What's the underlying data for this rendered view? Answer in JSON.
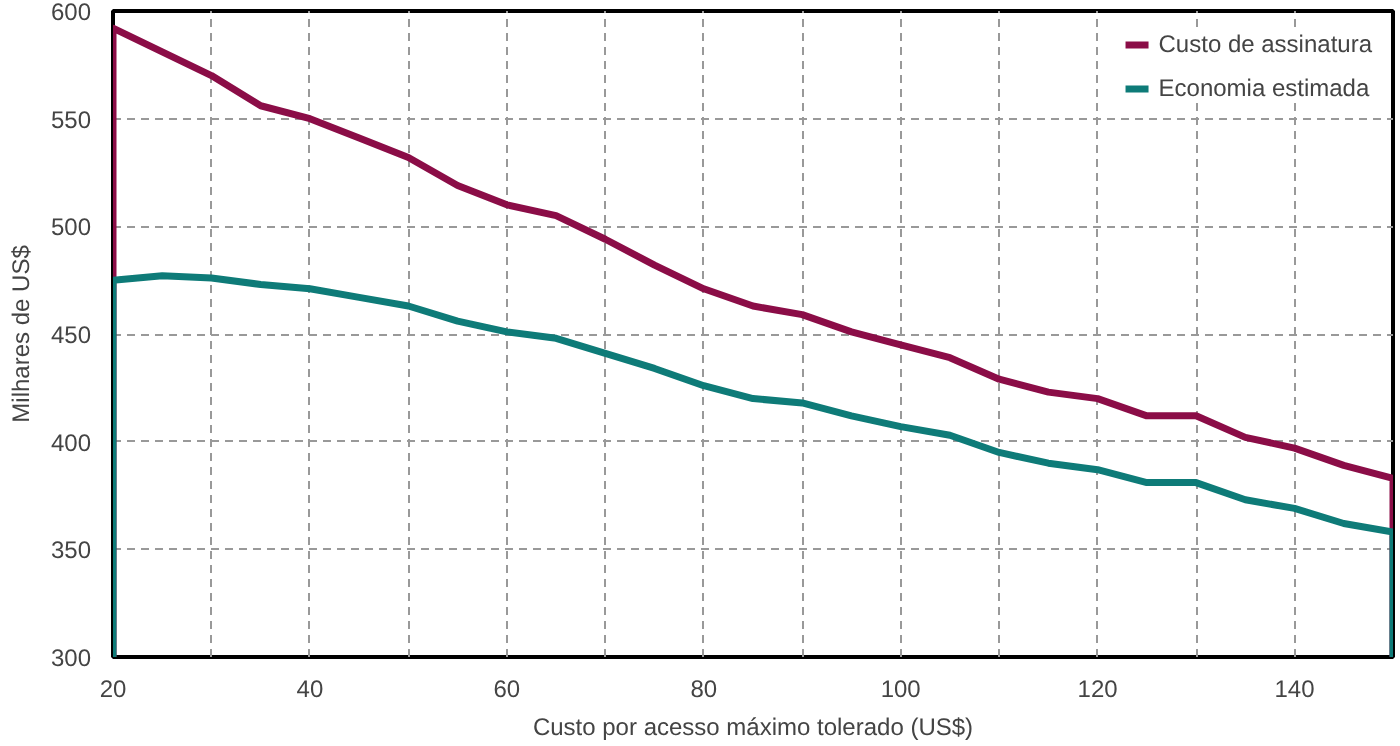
{
  "chart_data": {
    "type": "line",
    "xlabel": "Custo por acesso máximo tolerado (US$)",
    "ylabel": "Milhares de US$",
    "xlim": [
      20,
      150
    ],
    "ylim": [
      300,
      600
    ],
    "xticks": [
      20,
      {
        "value": 30,
        "label": null
      },
      40,
      {
        "value": 50,
        "label": null
      },
      60,
      {
        "value": 70,
        "label": null
      },
      80,
      {
        "value": 90,
        "label": null
      },
      100,
      {
        "value": 110,
        "label": null
      },
      120,
      {
        "value": 130,
        "label": null
      },
      140,
      {
        "value": 150,
        "label": null
      }
    ],
    "yticks": [
      300,
      350,
      400,
      450,
      500,
      550,
      600
    ],
    "grid": true,
    "legend": "top right",
    "line_style": "solid",
    "marker": "none",
    "series": [
      {
        "name": "Custo de assinatura",
        "color": "#8b0d47",
        "x": [
          20,
          20,
          25,
          30,
          35,
          40,
          45,
          50,
          55,
          60,
          65,
          70,
          75,
          80,
          85,
          90,
          95,
          100,
          105,
          110,
          115,
          120,
          125,
          130,
          135,
          140,
          145,
          150,
          150
        ],
        "values": [
          300,
          592,
          581,
          570,
          556,
          550,
          541,
          532,
          519,
          510,
          505,
          494,
          482,
          471,
          463,
          459,
          451,
          445,
          439,
          429,
          423,
          420,
          412,
          412,
          402,
          397,
          389,
          383,
          300
        ]
      },
      {
        "name": "Economia estimada",
        "color": "#0e7b78",
        "x": [
          20,
          20,
          25,
          30,
          35,
          40,
          45,
          50,
          55,
          60,
          65,
          70,
          75,
          80,
          85,
          90,
          95,
          100,
          105,
          110,
          115,
          120,
          125,
          130,
          135,
          140,
          145,
          150,
          150
        ],
        "values": [
          300,
          475,
          477,
          476,
          473,
          471,
          467,
          463,
          456,
          451,
          448,
          441,
          434,
          426,
          420,
          418,
          412,
          407,
          403,
          395,
          390,
          387,
          381,
          381,
          373,
          369,
          362,
          358,
          300
        ]
      }
    ]
  }
}
